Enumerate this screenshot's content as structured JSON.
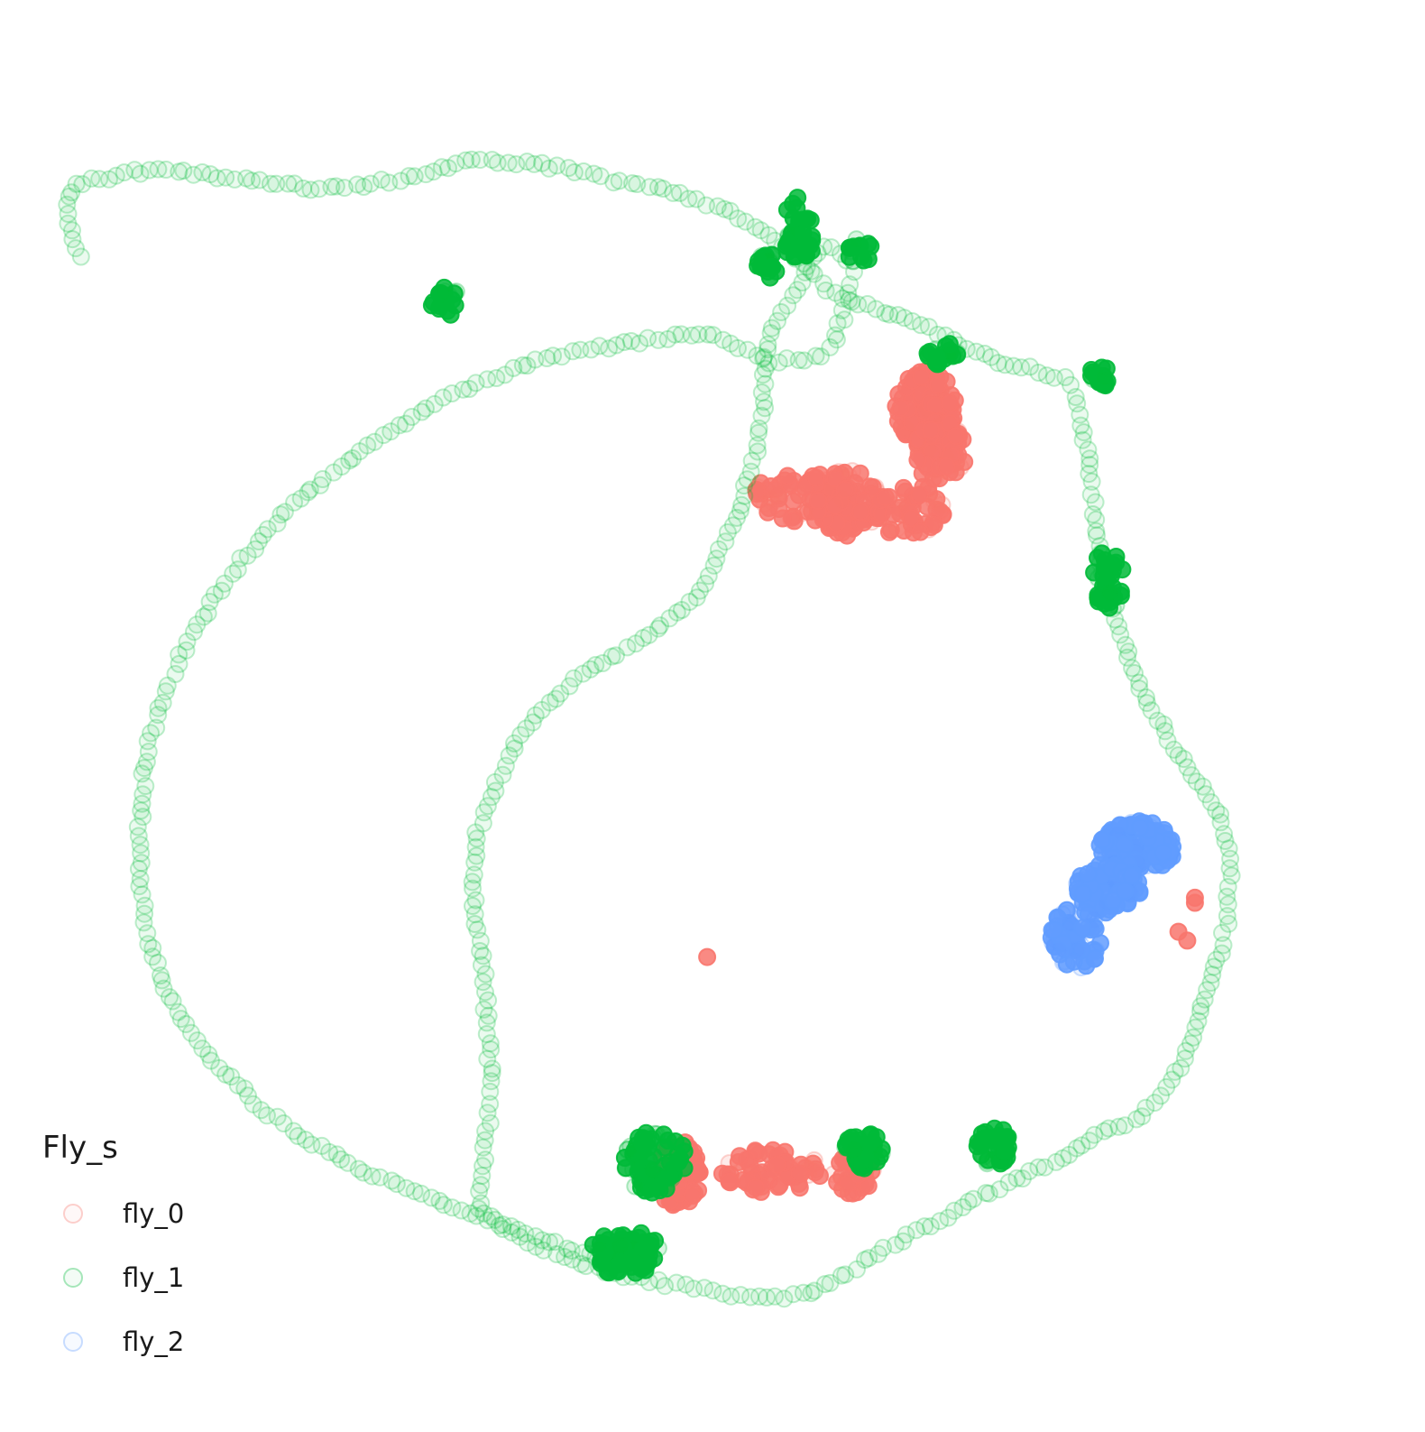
{
  "chart_data": {
    "type": "scatter",
    "title": "",
    "xlabel": "",
    "ylabel": "",
    "axes_visible": false,
    "grid": false,
    "xlim": [
      0,
      1000
    ],
    "ylim": [
      0,
      1000
    ],
    "legend": {
      "title": "Fly_s",
      "placement": "bottom-left"
    },
    "marker": "circle",
    "series": [
      {
        "name": "fly_0",
        "color": "#F8766D",
        "clusters": [
          {
            "cx": 488,
            "cy": 872,
            "rx": 18,
            "ry": 26,
            "n": 110
          },
          {
            "cx": 560,
            "cy": 870,
            "rx": 40,
            "ry": 18,
            "n": 70
          },
          {
            "cx": 625,
            "cy": 870,
            "rx": 16,
            "ry": 18,
            "n": 45
          },
          {
            "cx": 620,
            "cy": 340,
            "rx": 28,
            "ry": 26,
            "n": 90
          },
          {
            "cx": 585,
            "cy": 335,
            "rx": 40,
            "ry": 20,
            "n": 75
          },
          {
            "cx": 665,
            "cy": 345,
            "rx": 35,
            "ry": 20,
            "n": 60
          },
          {
            "cx": 682,
            "cy": 265,
            "rx": 24,
            "ry": 30,
            "n": 120
          },
          {
            "cx": 693,
            "cy": 300,
            "rx": 20,
            "ry": 25,
            "n": 80
          }
        ],
        "points": [
          [
            510,
            700
          ],
          [
            880,
            680
          ],
          [
            893,
            653
          ],
          [
            887,
            687
          ],
          [
            893,
            657
          ]
        ]
      },
      {
        "name": "fly_1",
        "color": "#00BA38",
        "path_points": [
          [
            430,
            940
          ],
          [
            380,
            923
          ],
          [
            330,
            905
          ],
          [
            280,
            887
          ],
          [
            235,
            868
          ],
          [
            195,
            845
          ],
          [
            160,
            820
          ],
          [
            130,
            792
          ],
          [
            105,
            760
          ],
          [
            85,
            725
          ],
          [
            72,
            688
          ],
          [
            66,
            650
          ],
          [
            64,
            610
          ],
          [
            66,
            570
          ],
          [
            72,
            530
          ],
          [
            85,
            490
          ],
          [
            100,
            455
          ],
          [
            120,
            420
          ],
          [
            145,
            385
          ],
          [
            175,
            350
          ],
          [
            210,
            320
          ],
          [
            250,
            290
          ],
          [
            290,
            265
          ],
          [
            330,
            245
          ],
          [
            370,
            230
          ],
          [
            410,
            220
          ],
          [
            445,
            213
          ],
          [
            465,
            211
          ],
          [
            490,
            207
          ],
          [
            515,
            205
          ],
          [
            535,
            218
          ],
          [
            560,
            228
          ],
          [
            600,
            225
          ],
          [
            610,
            212
          ],
          [
            620,
            180
          ],
          [
            626,
            150
          ],
          [
            600,
            135
          ],
          [
            580,
            170
          ],
          [
            562,
            200
          ],
          [
            556,
            225
          ],
          [
            554,
            265
          ],
          [
            548,
            300
          ],
          [
            537,
            340
          ],
          [
            520,
            378
          ],
          [
            500,
            415
          ],
          [
            470,
            440
          ],
          [
            440,
            460
          ],
          [
            405,
            480
          ],
          [
            385,
            500
          ],
          [
            360,
            530
          ],
          [
            345,
            560
          ],
          [
            330,
            600
          ],
          [
            325,
            640
          ],
          [
            330,
            680
          ],
          [
            335,
            720
          ],
          [
            338,
            760
          ],
          [
            340,
            800
          ],
          [
            338,
            830
          ],
          [
            335,
            860
          ],
          [
            330,
            900
          ],
          [
            350,
            915
          ],
          [
            390,
            935
          ],
          [
            430,
            950
          ],
          [
            470,
            958
          ],
          [
            500,
            962
          ],
          [
            530,
            968
          ],
          [
            565,
            970
          ],
          [
            590,
            967
          ],
          [
            620,
            950
          ],
          [
            650,
            930
          ],
          [
            680,
            915
          ],
          [
            715,
            895
          ],
          [
            745,
            880
          ],
          [
            770,
            868
          ],
          [
            795,
            855
          ],
          [
            815,
            840
          ],
          [
            845,
            830
          ],
          [
            870,
            805
          ],
          [
            885,
            780
          ],
          [
            895,
            750
          ],
          [
            905,
            720
          ],
          [
            915,
            690
          ],
          [
            920,
            660
          ],
          [
            920,
            630
          ],
          [
            915,
            595
          ],
          [
            900,
            565
          ],
          [
            880,
            540
          ],
          [
            860,
            505
          ],
          [
            845,
            475
          ],
          [
            835,
            445
          ],
          [
            825,
            410
          ],
          [
            818,
            380
          ],
          [
            815,
            355
          ],
          [
            812,
            325
          ],
          [
            805,
            285
          ],
          [
            800,
            255
          ],
          [
            790,
            242
          ],
          [
            770,
            235
          ],
          [
            750,
            232
          ],
          [
            720,
            220
          ],
          [
            690,
            205
          ],
          [
            660,
            192
          ],
          [
            630,
            182
          ],
          [
            610,
            175
          ],
          [
            590,
            155
          ],
          [
            560,
            126
          ],
          [
            530,
            110
          ],
          [
            490,
            95
          ],
          [
            450,
            88
          ],
          [
            420,
            80
          ],
          [
            400,
            75
          ],
          [
            380,
            72
          ],
          [
            360,
            70
          ],
          [
            340,
            68
          ],
          [
            320,
            70
          ],
          [
            300,
            75
          ],
          [
            275,
            82
          ],
          [
            240,
            88
          ],
          [
            200,
            90
          ],
          [
            160,
            85
          ],
          [
            120,
            80
          ],
          [
            100,
            78
          ],
          [
            80,
            76
          ],
          [
            60,
            78
          ],
          [
            40,
            82
          ],
          [
            20,
            86
          ],
          [
            10,
            92
          ],
          [
            8,
            110
          ],
          [
            12,
            130
          ],
          [
            20,
            150
          ]
        ],
        "clusters": [
          {
            "cx": 470,
            "cy": 863,
            "rx": 25,
            "ry": 25,
            "n": 70
          },
          {
            "cx": 633,
            "cy": 853,
            "rx": 15,
            "ry": 15,
            "n": 50
          },
          {
            "cx": 735,
            "cy": 850,
            "rx": 15,
            "ry": 15,
            "n": 40
          },
          {
            "cx": 825,
            "cy": 400,
            "rx": 12,
            "ry": 25,
            "n": 40
          },
          {
            "cx": 818,
            "cy": 240,
            "rx": 8,
            "ry": 10,
            "n": 20
          },
          {
            "cx": 695,
            "cy": 222,
            "rx": 12,
            "ry": 10,
            "n": 20
          },
          {
            "cx": 583,
            "cy": 135,
            "rx": 12,
            "ry": 12,
            "n": 30
          },
          {
            "cx": 557,
            "cy": 152,
            "rx": 8,
            "ry": 10,
            "n": 20
          },
          {
            "cx": 582,
            "cy": 113,
            "rx": 10,
            "ry": 15,
            "n": 15
          },
          {
            "cx": 630,
            "cy": 140,
            "rx": 10,
            "ry": 10,
            "n": 15
          },
          {
            "cx": 305,
            "cy": 180,
            "rx": 12,
            "ry": 12,
            "n": 20
          },
          {
            "cx": 446,
            "cy": 928,
            "rx": 28,
            "ry": 10,
            "n": 35
          },
          {
            "cx": 445,
            "cy": 940,
            "rx": 25,
            "ry": 12,
            "n": 40
          }
        ]
      },
      {
        "name": "fly_2",
        "color": "#619CFF",
        "clusters": [
          {
            "cx": 848,
            "cy": 612,
            "rx": 30,
            "ry": 20,
            "n": 130
          },
          {
            "cx": 825,
            "cy": 645,
            "rx": 25,
            "ry": 20,
            "n": 90
          },
          {
            "cx": 800,
            "cy": 685,
            "rx": 20,
            "ry": 25,
            "n": 70
          }
        ]
      }
    ]
  }
}
